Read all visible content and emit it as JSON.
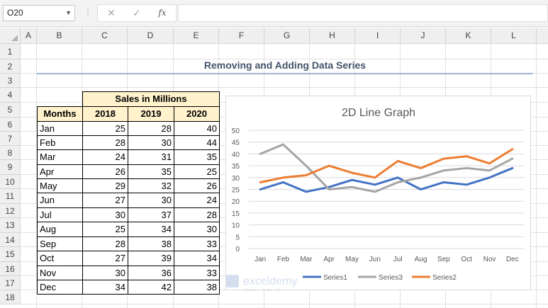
{
  "formula_bar": {
    "name_box": "O20",
    "fx": "fx",
    "cancel": "✕",
    "enter": "✓"
  },
  "columns": [
    "A",
    "B",
    "C",
    "D",
    "E",
    "F",
    "G",
    "H",
    "I",
    "J",
    "K",
    "L"
  ],
  "rows": [
    "1",
    "2",
    "3",
    "4",
    "5",
    "6",
    "7",
    "8",
    "9",
    "10",
    "11",
    "12",
    "13",
    "14",
    "15",
    "16",
    "17",
    "18"
  ],
  "sheet_title": "Removing and Adding Data Series",
  "table": {
    "group_header": "Sales in Millions",
    "month_header": "Months",
    "years": [
      "2018",
      "2019",
      "2020"
    ],
    "rows": [
      {
        "month": "Jan",
        "v": [
          "25",
          "28",
          "40"
        ]
      },
      {
        "month": "Feb",
        "v": [
          "28",
          "30",
          "44"
        ]
      },
      {
        "month": "Mar",
        "v": [
          "24",
          "31",
          "35"
        ]
      },
      {
        "month": "Apr",
        "v": [
          "26",
          "35",
          "25"
        ]
      },
      {
        "month": "May",
        "v": [
          "29",
          "32",
          "26"
        ]
      },
      {
        "month": "Jun",
        "v": [
          "27",
          "30",
          "24"
        ]
      },
      {
        "month": "Jul",
        "v": [
          "30",
          "37",
          "28"
        ]
      },
      {
        "month": "Aug",
        "v": [
          "25",
          "34",
          "30"
        ]
      },
      {
        "month": "Sep",
        "v": [
          "28",
          "38",
          "33"
        ]
      },
      {
        "month": "Oct",
        "v": [
          "27",
          "39",
          "34"
        ]
      },
      {
        "month": "Nov",
        "v": [
          "30",
          "36",
          "33"
        ]
      },
      {
        "month": "Dec",
        "v": [
          "34",
          "42",
          "38"
        ]
      }
    ]
  },
  "chart_data": {
    "type": "line",
    "title": "2D Line Graph",
    "categories": [
      "Jan",
      "Feb",
      "Mar",
      "Apr",
      "May",
      "Jun",
      "Jul",
      "Aug",
      "Sep",
      "Oct",
      "Nov",
      "Dec"
    ],
    "ylim": [
      0,
      50
    ],
    "yticks": [
      "0",
      "5",
      "10",
      "15",
      "20",
      "25",
      "30",
      "35",
      "40",
      "45",
      "50"
    ],
    "grid": true,
    "legend_position": "bottom",
    "series": [
      {
        "name": "Series1",
        "color": "#4472c4",
        "values": [
          25,
          28,
          24,
          26,
          29,
          27,
          30,
          25,
          28,
          27,
          30,
          34
        ]
      },
      {
        "name": "Series3",
        "color": "#a5a5a5",
        "values": [
          40,
          44,
          35,
          25,
          26,
          24,
          28,
          30,
          33,
          34,
          33,
          38
        ]
      },
      {
        "name": "Series2",
        "color": "#ed7d31",
        "values": [
          28,
          30,
          31,
          35,
          32,
          30,
          37,
          34,
          38,
          39,
          36,
          42
        ]
      }
    ]
  },
  "watermark": {
    "brand": "exceldemy",
    "tagline": "EXCEL · DATA · BI"
  }
}
